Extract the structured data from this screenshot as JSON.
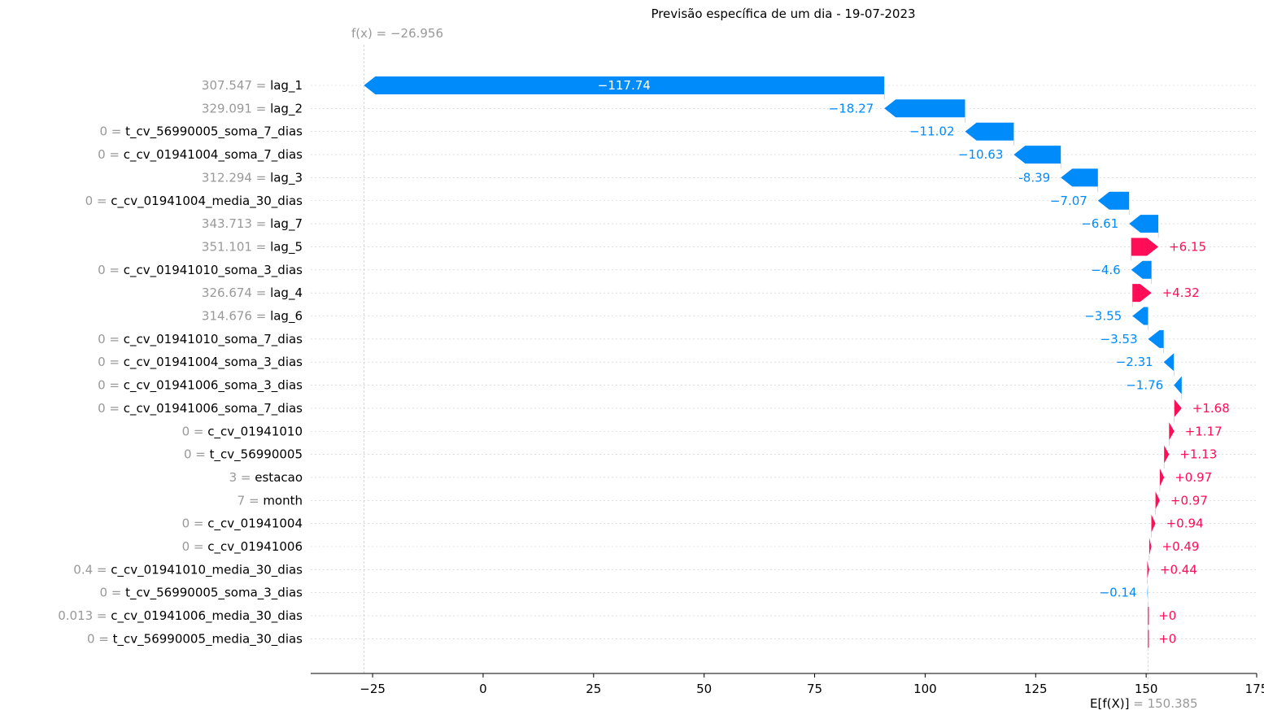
{
  "chart_data": {
    "type": "waterfall",
    "title": "Previsão específica de um dia - 19-07-2023",
    "fx_label": "f(x) = −26.956",
    "efx_label_main": "E[f(X)]",
    "efx_label_value": "= 150.385",
    "fx": -26.956,
    "base_value": 150.385,
    "xlim": [
      -39,
      175
    ],
    "x_ticks": [
      -25,
      0,
      25,
      50,
      75,
      100,
      125,
      150,
      175
    ],
    "x_tick_labels": [
      "−25",
      "0",
      "25",
      "50",
      "75",
      "100",
      "125",
      "150",
      "175"
    ],
    "features": [
      {
        "value": "307.547",
        "name": "lag_1",
        "shap": -117.74,
        "label": "−117.74"
      },
      {
        "value": "329.091",
        "name": "lag_2",
        "shap": -18.27,
        "label": "−18.27"
      },
      {
        "value": "0",
        "name": "t_cv_56990005_soma_7_dias",
        "shap": -11.02,
        "label": "−11.02"
      },
      {
        "value": "0",
        "name": "c_cv_01941004_soma_7_dias",
        "shap": -10.63,
        "label": "−10.63"
      },
      {
        "value": "312.294",
        "name": "lag_3",
        "shap": -8.39,
        "label": "-8.39"
      },
      {
        "value": "0",
        "name": "c_cv_01941004_media_30_dias",
        "shap": -7.07,
        "label": "−7.07"
      },
      {
        "value": "343.713",
        "name": "lag_7",
        "shap": -6.61,
        "label": "−6.61"
      },
      {
        "value": "351.101",
        "name": "lag_5",
        "shap": 6.15,
        "label": "+6.15"
      },
      {
        "value": "0",
        "name": "c_cv_01941010_soma_3_dias",
        "shap": -4.6,
        "label": "−4.6"
      },
      {
        "value": "326.674",
        "name": "lag_4",
        "shap": 4.32,
        "label": "+4.32"
      },
      {
        "value": "314.676",
        "name": "lag_6",
        "shap": -3.55,
        "label": "−3.55"
      },
      {
        "value": "0",
        "name": "c_cv_01941010_soma_7_dias",
        "shap": -3.53,
        "label": "−3.53"
      },
      {
        "value": "0",
        "name": "c_cv_01941004_soma_3_dias",
        "shap": -2.31,
        "label": "−2.31"
      },
      {
        "value": "0",
        "name": "c_cv_01941006_soma_3_dias",
        "shap": -1.76,
        "label": "−1.76"
      },
      {
        "value": "0",
        "name": "c_cv_01941006_soma_7_dias",
        "shap": 1.68,
        "label": "+1.68"
      },
      {
        "value": "0",
        "name": "c_cv_01941010",
        "shap": 1.17,
        "label": "+1.17"
      },
      {
        "value": "0",
        "name": "t_cv_56990005",
        "shap": 1.13,
        "label": "+1.13"
      },
      {
        "value": "3",
        "name": "estacao",
        "shap": 0.97,
        "label": "+0.97"
      },
      {
        "value": "7",
        "name": "month",
        "shap": 0.97,
        "label": "+0.97"
      },
      {
        "value": "0",
        "name": "c_cv_01941004",
        "shap": 0.94,
        "label": "+0.94"
      },
      {
        "value": "0",
        "name": "c_cv_01941006",
        "shap": 0.49,
        "label": "+0.49"
      },
      {
        "value": "0.4",
        "name": "c_cv_01941010_media_30_dias",
        "shap": 0.44,
        "label": "+0.44"
      },
      {
        "value": "0",
        "name": "t_cv_56990005_soma_3_dias",
        "shap": -0.14,
        "label": "−0.14"
      },
      {
        "value": "0.013",
        "name": "c_cv_01941006_media_30_dias",
        "shap": 0.0,
        "label": "+0"
      },
      {
        "value": "0",
        "name": "t_cv_56990005_media_30_dias",
        "shap": 0.0,
        "label": "+0"
      }
    ],
    "colors": {
      "positive": "#ff0d57",
      "negative": "#008bfb",
      "axis": "#000000",
      "feature_value": "#999999"
    }
  }
}
